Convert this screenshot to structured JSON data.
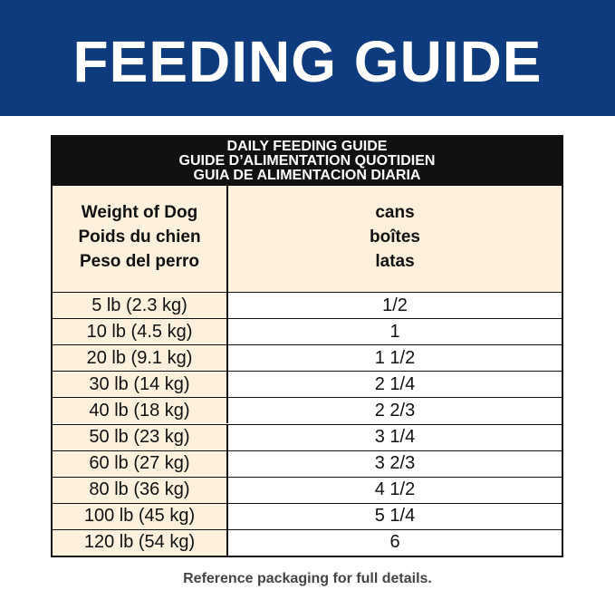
{
  "header": {
    "title": "FEEDING GUIDE"
  },
  "table": {
    "caption": [
      "DAILY FEEDING GUIDE",
      "GUIDE D’ALIMENTATION QUOTIDIEN",
      "GUIA DE ALIMENTACION DIARIA"
    ],
    "columns": [
      [
        "Weight of Dog",
        "Poids du chien",
        "Peso del perro"
      ],
      [
        "cans",
        "boîtes",
        "latas"
      ]
    ],
    "rows": [
      [
        "5 lb (2.3 kg)",
        "1/2"
      ],
      [
        "10 lb (4.5 kg)",
        "1"
      ],
      [
        "20 lb (9.1 kg)",
        "1 1/2"
      ],
      [
        "30 lb (14 kg)",
        "2 1/4"
      ],
      [
        "40 lb (18 kg)",
        "2 2/3"
      ],
      [
        "50 lb (23 kg)",
        "3 1/4"
      ],
      [
        "60 lb (27 kg)",
        "3 2/3"
      ],
      [
        "80 lb (36 kg)",
        "4 1/2"
      ],
      [
        "100 lb (45 kg)",
        "5 1/4"
      ],
      [
        "120 lb (54 kg)",
        "6"
      ]
    ]
  },
  "footer": "Reference packaging for full details."
}
